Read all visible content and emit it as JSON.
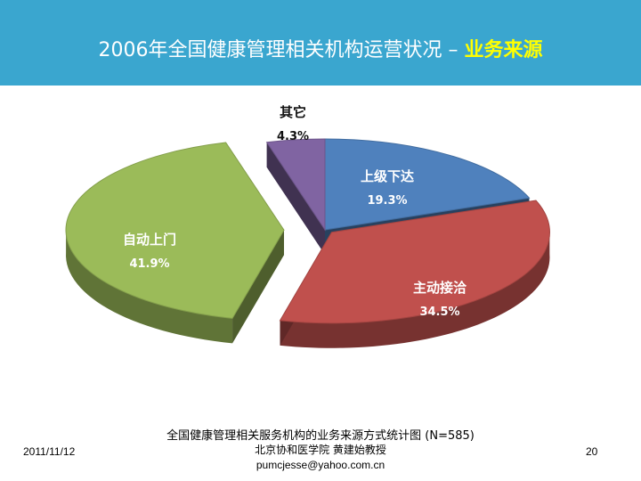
{
  "header": {
    "title_main": "2006年全国健康管理相关机构运营状况 – ",
    "title_highlight": "业务来源"
  },
  "chart_data": {
    "type": "pie",
    "title": "",
    "slices": [
      {
        "label": "上级下达",
        "value": 19.3,
        "value_label": "19.3%",
        "color": "#4f81bd"
      },
      {
        "label": "主动接洽",
        "value": 34.5,
        "value_label": "34.5%",
        "color": "#c0504d"
      },
      {
        "label": "自动上门",
        "value": 41.9,
        "value_label": "41.9%",
        "color": "#9bbb59"
      },
      {
        "label": "其它",
        "value": 4.3,
        "value_label": "4.3%",
        "color": "#8064a2"
      }
    ]
  },
  "caption": "全国健康管理相关服务机构的业务来源方式统计图 (N=585)",
  "footer": {
    "date": "2011/11/12",
    "author": "北京协和医学院 黄建始教授",
    "email": "pumcjesse@yahoo.com.cn",
    "page": "20"
  }
}
